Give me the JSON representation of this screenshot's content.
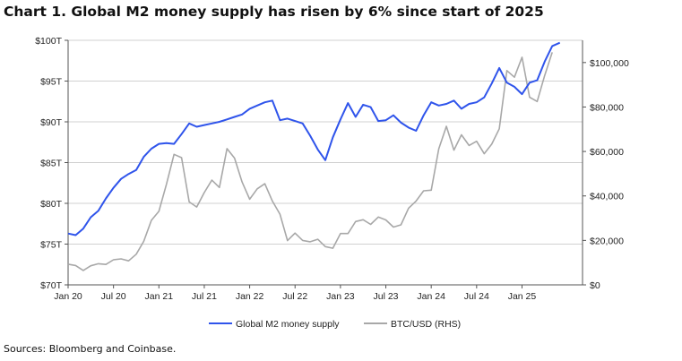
{
  "title": "Chart 1. Global M2 money supply has risen by 6% since start of 2025",
  "source": "Sources: Bloomberg and Coinbase.",
  "chart_data": {
    "type": "line",
    "x_ticks": [
      "Jan 20",
      "Jul 20",
      "Jan 21",
      "Jul 21",
      "Jan 22",
      "Jul 22",
      "Jan 23",
      "Jul 23",
      "Jan 24",
      "Jul 24",
      "Jan 25"
    ],
    "ylim_left": [
      70,
      100
    ],
    "left_ticks": [
      "$70T",
      "$75T",
      "$80T",
      "$85T",
      "$90T",
      "$95T",
      "$100T"
    ],
    "ylim_right": [
      0,
      110000
    ],
    "right_ticks": [
      "$0",
      "$20,000",
      "$40,000",
      "$60,000",
      "$80,000",
      "$100,000"
    ],
    "grid": true,
    "legend_position": "bottom",
    "series": [
      {
        "name": "Global M2 money supply",
        "axis": "left",
        "color": "#2f54eb",
        "points": [
          [
            "2020-01",
            76.3
          ],
          [
            "2020-02",
            76.1
          ],
          [
            "2020-03",
            76.9
          ],
          [
            "2020-04",
            78.3
          ],
          [
            "2020-05",
            79.1
          ],
          [
            "2020-06",
            80.6
          ],
          [
            "2020-07",
            81.9
          ],
          [
            "2020-08",
            83.0
          ],
          [
            "2020-09",
            83.6
          ],
          [
            "2020-10",
            84.1
          ],
          [
            "2020-11",
            85.7
          ],
          [
            "2020-12",
            86.7
          ],
          [
            "2021-01",
            87.3
          ],
          [
            "2021-02",
            87.4
          ],
          [
            "2021-03",
            87.3
          ],
          [
            "2021-04",
            88.5
          ],
          [
            "2021-05",
            89.8
          ],
          [
            "2021-06",
            89.4
          ],
          [
            "2021-07",
            89.6
          ],
          [
            "2021-08",
            89.8
          ],
          [
            "2021-09",
            90.0
          ],
          [
            "2021-10",
            90.3
          ],
          [
            "2021-11",
            90.6
          ],
          [
            "2021-12",
            90.9
          ],
          [
            "2022-01",
            91.6
          ],
          [
            "2022-02",
            92.0
          ],
          [
            "2022-03",
            92.4
          ],
          [
            "2022-04",
            92.6
          ],
          [
            "2022-05",
            90.2
          ],
          [
            "2022-06",
            90.4
          ],
          [
            "2022-07",
            90.1
          ],
          [
            "2022-08",
            89.8
          ],
          [
            "2022-09",
            88.3
          ],
          [
            "2022-10",
            86.6
          ],
          [
            "2022-11",
            85.3
          ],
          [
            "2022-12",
            88.1
          ],
          [
            "2023-01",
            90.3
          ],
          [
            "2023-02",
            92.3
          ],
          [
            "2023-03",
            90.6
          ],
          [
            "2023-04",
            92.1
          ],
          [
            "2023-05",
            91.8
          ],
          [
            "2023-06",
            90.1
          ],
          [
            "2023-07",
            90.2
          ],
          [
            "2023-08",
            90.8
          ],
          [
            "2023-09",
            89.9
          ],
          [
            "2023-10",
            89.3
          ],
          [
            "2023-11",
            88.9
          ],
          [
            "2023-12",
            90.8
          ],
          [
            "2024-01",
            92.4
          ],
          [
            "2024-02",
            92.0
          ],
          [
            "2024-03",
            92.2
          ],
          [
            "2024-04",
            92.6
          ],
          [
            "2024-05",
            91.6
          ],
          [
            "2024-06",
            92.2
          ],
          [
            "2024-07",
            92.4
          ],
          [
            "2024-08",
            93.0
          ],
          [
            "2024-09",
            94.7
          ],
          [
            "2024-10",
            96.6
          ],
          [
            "2024-11",
            94.8
          ],
          [
            "2024-12",
            94.3
          ],
          [
            "2025-01",
            93.4
          ],
          [
            "2025-02",
            94.8
          ],
          [
            "2025-03",
            95.1
          ],
          [
            "2025-04",
            97.4
          ],
          [
            "2025-05",
            99.3
          ],
          [
            "2025-06",
            99.7
          ]
        ]
      },
      {
        "name": "BTC/USD (RHS)",
        "axis": "right",
        "color": "#a8a8a8",
        "points": [
          [
            "2020-01",
            9300
          ],
          [
            "2020-02",
            8700
          ],
          [
            "2020-03",
            6500
          ],
          [
            "2020-04",
            8600
          ],
          [
            "2020-05",
            9500
          ],
          [
            "2020-06",
            9200
          ],
          [
            "2020-07",
            11300
          ],
          [
            "2020-08",
            11700
          ],
          [
            "2020-09",
            10800
          ],
          [
            "2020-10",
            13800
          ],
          [
            "2020-11",
            19600
          ],
          [
            "2020-12",
            29000
          ],
          [
            "2021-01",
            33100
          ],
          [
            "2021-02",
            45200
          ],
          [
            "2021-03",
            58700
          ],
          [
            "2021-04",
            57200
          ],
          [
            "2021-05",
            37300
          ],
          [
            "2021-06",
            35000
          ],
          [
            "2021-07",
            41500
          ],
          [
            "2021-08",
            47100
          ],
          [
            "2021-09",
            43800
          ],
          [
            "2021-10",
            61300
          ],
          [
            "2021-11",
            57000
          ],
          [
            "2021-12",
            46300
          ],
          [
            "2022-01",
            38500
          ],
          [
            "2022-02",
            43200
          ],
          [
            "2022-03",
            45500
          ],
          [
            "2022-04",
            37700
          ],
          [
            "2022-05",
            31800
          ],
          [
            "2022-06",
            19900
          ],
          [
            "2022-07",
            23300
          ],
          [
            "2022-08",
            20000
          ],
          [
            "2022-09",
            19400
          ],
          [
            "2022-10",
            20500
          ],
          [
            "2022-11",
            17200
          ],
          [
            "2022-12",
            16500
          ],
          [
            "2023-01",
            23100
          ],
          [
            "2023-02",
            23100
          ],
          [
            "2023-03",
            28500
          ],
          [
            "2023-04",
            29300
          ],
          [
            "2023-05",
            27200
          ],
          [
            "2023-06",
            30500
          ],
          [
            "2023-07",
            29200
          ],
          [
            "2023-08",
            26000
          ],
          [
            "2023-09",
            27000
          ],
          [
            "2023-10",
            34500
          ],
          [
            "2023-11",
            37700
          ],
          [
            "2023-12",
            42300
          ],
          [
            "2024-01",
            42600
          ],
          [
            "2024-02",
            61200
          ],
          [
            "2024-03",
            71300
          ],
          [
            "2024-04",
            60600
          ],
          [
            "2024-05",
            67500
          ],
          [
            "2024-06",
            62700
          ],
          [
            "2024-07",
            64600
          ],
          [
            "2024-08",
            59000
          ],
          [
            "2024-09",
            63300
          ],
          [
            "2024-10",
            70200
          ],
          [
            "2024-11",
            96400
          ],
          [
            "2024-12",
            93400
          ],
          [
            "2025-01",
            102400
          ],
          [
            "2025-02",
            84400
          ],
          [
            "2025-03",
            82500
          ],
          [
            "2025-04",
            94200
          ],
          [
            "2025-05",
            104600
          ]
        ]
      }
    ]
  }
}
